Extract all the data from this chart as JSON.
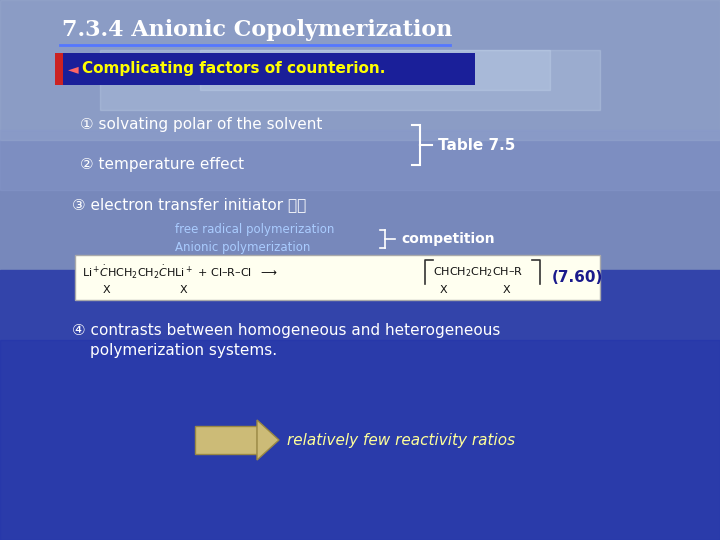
{
  "title": "7.3.4 Anionic Copolymerization",
  "title_fontsize": 16,
  "title_color": "#FFFFFF",
  "bullet_text": "Complicating factors of counterion.",
  "bullet_bg": "#1a1f99",
  "item1": "① solvating polar of the solvent",
  "item2": "② temperature effect",
  "item3": "③ electron transfer initiator 사용",
  "table_label": "Table 7.5",
  "free_radical": "free radical polymerization",
  "anionic": "Anionic polymerization",
  "competition": "competition",
  "equation_label": "(7.60)",
  "item4_line1": "④ contrasts between homogeneous and heterogeneous",
  "item4_line2": "polymerization systems.",
  "arrow_text": "relatively few reactivity ratios",
  "sky_top": "#8899CC",
  "sky_mid": "#6677BB",
  "ocean_top": "#4455AA",
  "ocean_bot": "#2233AA",
  "white_text": "#FFFFFF",
  "yellow_text": "#FFFF00",
  "dark_blue_text": "#1a1a8c",
  "light_blue_text": "#AACCFF"
}
